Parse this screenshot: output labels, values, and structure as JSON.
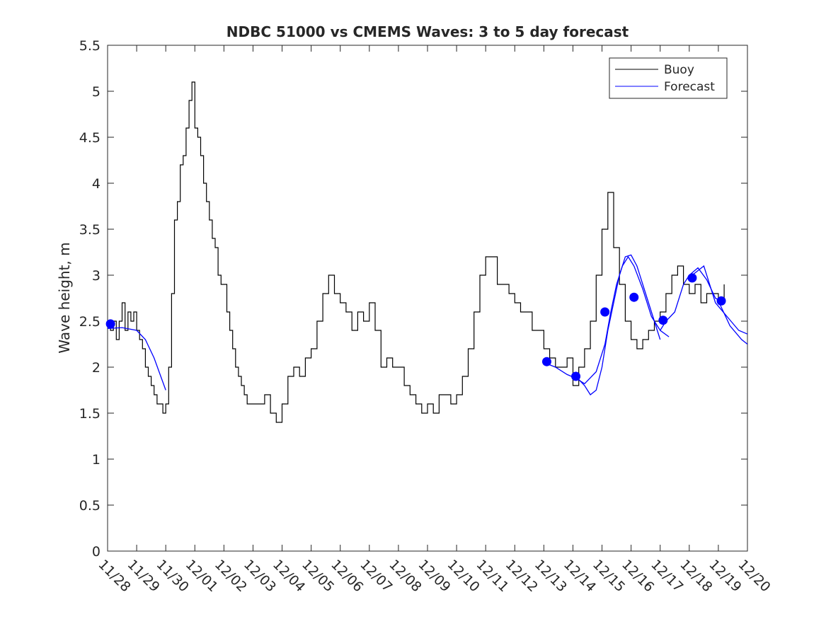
{
  "chart_data": {
    "type": "line",
    "title": "NDBC 51000 vs CMEMS Waves: 3 to 5 day forecast",
    "xlabel": "",
    "ylabel": "Wave height, m",
    "x_ticks": [
      "11/28",
      "11/29",
      "11/30",
      "12/01",
      "12/02",
      "12/03",
      "12/04",
      "12/05",
      "12/06",
      "12/07",
      "12/08",
      "12/09",
      "12/10",
      "12/11",
      "12/12",
      "12/13",
      "12/14",
      "12/15",
      "12/16",
      "12/17",
      "12/18",
      "12/19",
      "12/20"
    ],
    "y_ticks": [
      "0",
      "0.5",
      "1",
      "1.5",
      "2",
      "2.5",
      "3",
      "3.5",
      "4",
      "4.5",
      "5",
      "5.5"
    ],
    "xlim": [
      "11/28",
      "12/20"
    ],
    "ylim": [
      0,
      5.5
    ],
    "grid": false,
    "legend": {
      "position": "top-right",
      "entries": [
        "Buoy",
        "Forecast"
      ]
    },
    "colors": {
      "buoy": "#000000",
      "forecast": "#0000ff"
    },
    "series": [
      {
        "name": "Buoy",
        "x_days_from_1128": [
          0,
          0.1,
          0.2,
          0.3,
          0.4,
          0.5,
          0.6,
          0.7,
          0.8,
          0.9,
          1.0,
          1.1,
          1.2,
          1.3,
          1.4,
          1.5,
          1.6,
          1.7,
          1.8,
          1.9,
          2.0,
          2.1,
          2.2,
          2.3,
          2.4,
          2.5,
          2.6,
          2.7,
          2.8,
          2.9,
          3.0,
          3.1,
          3.2,
          3.3,
          3.4,
          3.5,
          3.6,
          3.7,
          3.8,
          3.9,
          4.0,
          4.1,
          4.2,
          4.3,
          4.4,
          4.5,
          4.6,
          4.7,
          4.8,
          4.9,
          5.0,
          5.2,
          5.4,
          5.6,
          5.8,
          6.0,
          6.2,
          6.4,
          6.6,
          6.8,
          7.0,
          7.2,
          7.4,
          7.6,
          7.8,
          8.0,
          8.2,
          8.4,
          8.6,
          8.8,
          9.0,
          9.2,
          9.4,
          9.6,
          9.8,
          10.0,
          10.2,
          10.4,
          10.6,
          10.8,
          11.0,
          11.2,
          11.4,
          11.6,
          11.8,
          12.0,
          12.2,
          12.4,
          12.6,
          12.8,
          13.0,
          13.2,
          13.4,
          13.6,
          13.8,
          14.0,
          14.2,
          14.4,
          14.6,
          14.8,
          15.0,
          15.2,
          15.4,
          15.6,
          15.8,
          16.0,
          16.2,
          16.4,
          16.6,
          16.8,
          17.0,
          17.2,
          17.4,
          17.6,
          17.8,
          18.0,
          18.2,
          18.4,
          18.6,
          18.8,
          19.0,
          19.2,
          19.4,
          19.6,
          19.8,
          20.0,
          20.2,
          20.4,
          20.6,
          20.8,
          21.0,
          21.2
        ],
        "values": [
          2.5,
          2.4,
          2.5,
          2.3,
          2.5,
          2.7,
          2.4,
          2.6,
          2.5,
          2.6,
          2.4,
          2.3,
          2.2,
          2.0,
          1.9,
          1.8,
          1.7,
          1.6,
          1.6,
          1.5,
          1.6,
          2.0,
          2.8,
          3.6,
          3.8,
          4.2,
          4.3,
          4.6,
          4.9,
          5.1,
          4.6,
          4.5,
          4.3,
          4.0,
          3.8,
          3.6,
          3.4,
          3.3,
          3.0,
          2.9,
          2.9,
          2.6,
          2.4,
          2.2,
          2.0,
          1.9,
          1.8,
          1.7,
          1.6,
          1.6,
          1.6,
          1.6,
          1.7,
          1.5,
          1.4,
          1.6,
          1.9,
          2.0,
          1.9,
          2.1,
          2.2,
          2.5,
          2.8,
          3.0,
          2.8,
          2.7,
          2.6,
          2.4,
          2.6,
          2.5,
          2.7,
          2.4,
          2.0,
          2.1,
          2.0,
          2.0,
          1.8,
          1.7,
          1.6,
          1.5,
          1.6,
          1.5,
          1.7,
          1.7,
          1.6,
          1.7,
          1.9,
          2.2,
          2.6,
          3.0,
          3.2,
          3.2,
          2.9,
          2.9,
          2.8,
          2.7,
          2.6,
          2.6,
          2.4,
          2.4,
          2.2,
          2.1,
          2.0,
          2.0,
          2.1,
          1.8,
          2.0,
          2.2,
          2.5,
          3.0,
          3.5,
          3.9,
          3.3,
          2.9,
          2.5,
          2.3,
          2.2,
          2.3,
          2.4,
          2.5,
          2.6,
          2.8,
          3.0,
          3.1,
          2.9,
          2.8,
          2.9,
          2.7,
          2.8,
          2.8,
          2.7,
          2.9
        ]
      },
      {
        "name": "Forecast",
        "segments": [
          {
            "x_days_from_1128": [
              0,
              0.5,
              1.0,
              1.3,
              1.6,
              2.0
            ],
            "values": [
              2.42,
              2.43,
              2.4,
              2.3,
              2.1,
              1.75
            ]
          },
          {
            "x_days_from_1128": [
              15.0,
              15.4,
              15.8,
              16.1,
              16.4,
              16.8,
              17.1,
              17.3,
              17.5,
              17.7,
              17.9,
              18.1,
              18.4,
              18.7,
              19.0,
              19.3
            ],
            "values": [
              2.05,
              2.0,
              1.92,
              1.88,
              1.82,
              1.95,
              2.25,
              2.6,
              2.9,
              3.1,
              3.2,
              3.1,
              2.85,
              2.55,
              2.4,
              2.33
            ]
          },
          {
            "x_days_from_1128": [
              16.1,
              16.4,
              16.6,
              16.8,
              17.0,
              17.2,
              17.4,
              17.6,
              17.8,
              18.0,
              18.2,
              18.5,
              18.8,
              19.0
            ],
            "values": [
              1.9,
              1.8,
              1.7,
              1.75,
              2.0,
              2.4,
              2.7,
              3.0,
              3.2,
              3.22,
              3.1,
              2.8,
              2.5,
              2.3
            ]
          },
          {
            "x_days_from_1128": [
              19.0,
              19.2,
              19.5,
              19.8,
              20.0,
              20.3,
              20.6,
              20.9,
              21.2
            ],
            "values": [
              2.4,
              2.5,
              2.6,
              2.9,
              3.0,
              3.08,
              2.95,
              2.75,
              2.7
            ]
          },
          {
            "x_days_from_1128": [
              20.1,
              20.5,
              20.9,
              21.3,
              21.7,
              22.0
            ],
            "values": [
              3.0,
              3.1,
              2.7,
              2.55,
              2.4,
              2.36
            ]
          },
          {
            "x_days_from_1128": [
              21.0,
              21.4,
              21.8,
              22.0
            ],
            "values": [
              2.72,
              2.45,
              2.3,
              2.25
            ]
          }
        ],
        "markers": {
          "x_days_from_1128": [
            0.1,
            15.1,
            16.1,
            17.1,
            18.1,
            19.1,
            20.1,
            21.1
          ],
          "values": [
            2.47,
            2.06,
            1.9,
            2.6,
            2.76,
            2.51,
            2.97,
            2.72
          ]
        }
      }
    ]
  }
}
